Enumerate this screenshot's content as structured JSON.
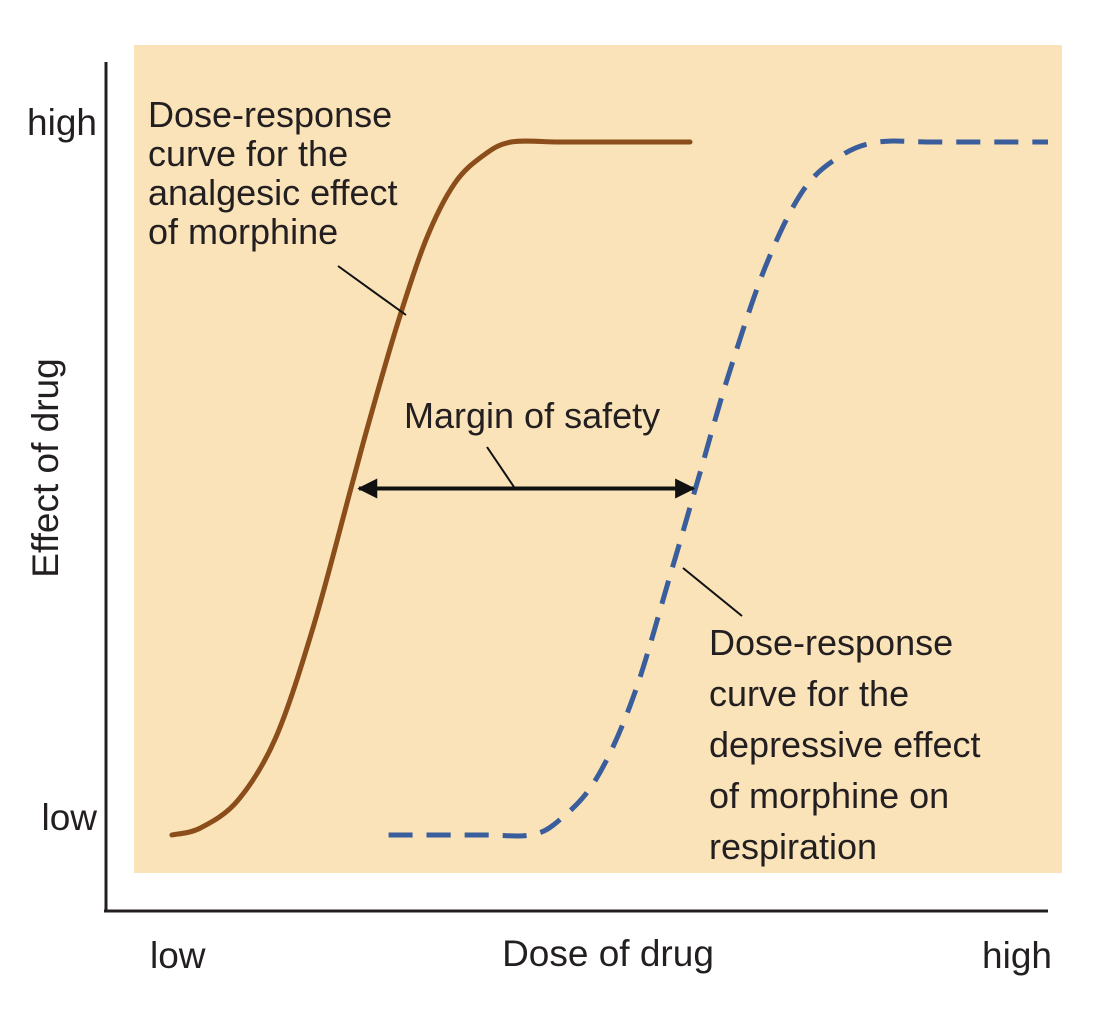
{
  "chart_data": {
    "type": "line",
    "title": "",
    "xlabel": "Dose of drug",
    "ylabel": "Effect of drug",
    "x_tick_labels": [
      "low",
      "high"
    ],
    "y_tick_labels": [
      "low",
      "high"
    ],
    "xlim": [
      0,
      100
    ],
    "ylim": [
      0,
      100
    ],
    "grid": false,
    "legend": "none",
    "series": [
      {
        "name": "analgesic",
        "label_lines": [
          "Dose-response",
          "curve for the",
          "analgesic effect",
          "of morphine"
        ],
        "color": "#8b4d1a",
        "style": "solid",
        "x": [
          7,
          10,
          14,
          18,
          22,
          26,
          28,
          31,
          34,
          37,
          40,
          43,
          48,
          53,
          58,
          62
        ],
        "y": [
          0,
          1,
          5,
          14,
          30,
          50,
          60,
          74,
          86,
          94,
          98,
          100,
          100,
          100,
          100,
          100
        ]
      },
      {
        "name": "respiratory depression",
        "label_lines": [
          "Dose-response",
          "curve for the",
          "depressive effect",
          "of morphine on",
          "respiration"
        ],
        "color": "#3a5d9c",
        "style": "dashed",
        "x": [
          30,
          40,
          45,
          48,
          52,
          56,
          60,
          63,
          66,
          70,
          74,
          78,
          82,
          88,
          100
        ],
        "y": [
          0,
          0,
          0,
          2,
          8,
          20,
          38,
          52,
          66,
          82,
          93,
          98,
          100,
          100,
          100
        ]
      }
    ],
    "annotations": [
      {
        "id": "margin",
        "text": "Margin of safety",
        "type": "double-arrow",
        "from_x": 26,
        "to_x": 63,
        "y": 50
      }
    ]
  }
}
